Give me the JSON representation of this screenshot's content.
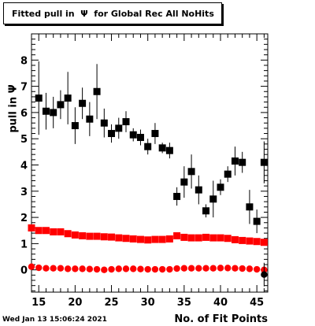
{
  "title": "Fitted pull in  Ψ  for Global Rec All NoHits",
  "timestamp": "Wed Jan 13 15:06:24 2021",
  "chart_data": {
    "type": "scatter",
    "xlabel": "No. of Fit Points",
    "ylabel": "pull in  Ψ",
    "xlim": [
      14,
      46.5
    ],
    "ylim": [
      -0.85,
      9.0
    ],
    "xticks": [
      15,
      20,
      25,
      30,
      35,
      40,
      45
    ],
    "yticks": [
      0,
      1,
      2,
      3,
      4,
      5,
      6,
      7,
      8
    ],
    "grid": false,
    "legend": "none",
    "series": [
      {
        "marker": "square",
        "color": "#000000",
        "x": [
          15,
          16,
          17,
          18,
          19,
          20,
          21,
          22,
          23,
          24,
          25,
          26,
          27,
          28,
          29,
          30,
          31,
          32,
          33,
          34,
          35,
          36,
          37,
          38,
          39,
          40,
          41,
          42,
          43,
          44,
          45,
          46
        ],
        "y": [
          6.55,
          6.05,
          6.0,
          6.3,
          6.55,
          5.5,
          6.35,
          5.75,
          6.8,
          5.6,
          5.2,
          5.4,
          5.65,
          5.15,
          5.05,
          4.7,
          5.2,
          4.65,
          4.55,
          2.8,
          3.35,
          3.75,
          3.05,
          2.25,
          2.7,
          3.15,
          3.65,
          4.15,
          4.1,
          2.4,
          1.85,
          4.1
        ],
        "err": [
          1.4,
          0.7,
          0.6,
          0.55,
          1.0,
          0.7,
          0.6,
          0.65,
          1.05,
          0.55,
          0.35,
          0.4,
          0.4,
          0.25,
          0.3,
          0.3,
          0.4,
          0.2,
          0.3,
          0.35,
          0.6,
          0.65,
          0.55,
          0.25,
          0.7,
          0.3,
          0.3,
          0.55,
          0.4,
          0.65,
          0.45,
          0.8
        ]
      },
      {
        "marker": "square",
        "color": "#ff0000",
        "x": [
          14,
          15,
          16,
          17,
          18,
          19,
          20,
          21,
          22,
          23,
          24,
          25,
          26,
          27,
          28,
          29,
          30,
          31,
          32,
          33,
          34,
          35,
          36,
          37,
          38,
          39,
          40,
          41,
          42,
          43,
          44,
          45,
          46
        ],
        "y": [
          1.6,
          1.5,
          1.5,
          1.45,
          1.45,
          1.38,
          1.33,
          1.3,
          1.28,
          1.28,
          1.26,
          1.25,
          1.22,
          1.2,
          1.18,
          1.16,
          1.14,
          1.16,
          1.16,
          1.18,
          1.3,
          1.24,
          1.22,
          1.22,
          1.24,
          1.22,
          1.22,
          1.2,
          1.15,
          1.12,
          1.1,
          1.08,
          1.05
        ],
        "err": [
          0.04,
          0.04,
          0.04,
          0.04,
          0.04,
          0.04,
          0.04,
          0.04,
          0.04,
          0.04,
          0.04,
          0.04,
          0.04,
          0.04,
          0.04,
          0.04,
          0.04,
          0.04,
          0.04,
          0.04,
          0.07,
          0.05,
          0.04,
          0.04,
          0.04,
          0.04,
          0.04,
          0.04,
          0.05,
          0.05,
          0.05,
          0.05,
          0.06
        ]
      },
      {
        "marker": "circle",
        "color": "#ff0000",
        "x": [
          14,
          15,
          16,
          17,
          18,
          19,
          20,
          21,
          22,
          23,
          24,
          25,
          26,
          27,
          28,
          29,
          30,
          31,
          32,
          33,
          34,
          35,
          36,
          37,
          38,
          39,
          40,
          41,
          42,
          43,
          44,
          45,
          46
        ],
        "y": [
          0.12,
          0.08,
          0.06,
          0.06,
          0.06,
          0.04,
          0.04,
          0.04,
          0.03,
          0.02,
          0.0,
          0.02,
          0.04,
          0.04,
          0.04,
          0.03,
          0.02,
          0.02,
          0.02,
          0.02,
          0.05,
          0.06,
          0.06,
          0.06,
          0.06,
          0.06,
          0.07,
          0.07,
          0.06,
          0.05,
          0.04,
          0.02,
          0.0
        ],
        "err": [
          0.03,
          0.03,
          0.03,
          0.03,
          0.03,
          0.03,
          0.03,
          0.03,
          0.03,
          0.03,
          0.03,
          0.03,
          0.03,
          0.03,
          0.03,
          0.03,
          0.03,
          0.03,
          0.03,
          0.03,
          0.03,
          0.03,
          0.03,
          0.03,
          0.03,
          0.03,
          0.03,
          0.03,
          0.03,
          0.03,
          0.03,
          0.03,
          0.03
        ]
      },
      {
        "marker": "circle",
        "color": "#000000",
        "x": [
          46
        ],
        "y": [
          -0.18
        ],
        "err": [
          0.45
        ]
      }
    ]
  }
}
